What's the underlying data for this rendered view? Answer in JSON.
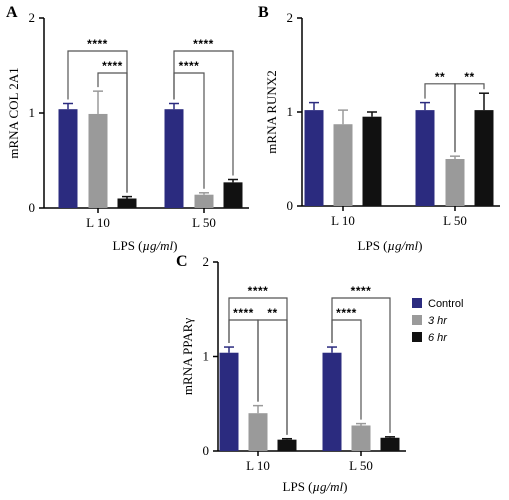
{
  "colors": {
    "control": "#2b2b7f",
    "hr3": "#9a9a9a",
    "hr6": "#111111",
    "axis": "#000000"
  },
  "legend": [
    {
      "label": "Control",
      "italic": false,
      "color_key": "control"
    },
    {
      "label": "3 hr",
      "italic": true,
      "color_key": "hr3"
    },
    {
      "label": "6 hr",
      "italic": true,
      "color_key": "hr6"
    }
  ],
  "chart_data": [
    {
      "panel": "A",
      "type": "bar",
      "ylabel": "mRNA COL 2A1",
      "xlabel_prefix": "LPS (",
      "xlabel_unit": "µg/ml",
      "xlabel_suffix": ")",
      "ylim": [
        0,
        2
      ],
      "yticks": [
        "0",
        "1",
        "2"
      ],
      "categories": [
        "L 10",
        "L 50"
      ],
      "series": [
        {
          "values": [
            1.04,
            1.04
          ],
          "errors": [
            0.06,
            0.06
          ],
          "color_key": "control"
        },
        {
          "values": [
            0.99,
            0.14
          ],
          "errors": [
            0.24,
            0.02
          ],
          "color_key": "hr3"
        },
        {
          "values": [
            0.1,
            0.27
          ],
          "errors": [
            0.02,
            0.03
          ],
          "color_key": "hr6"
        }
      ],
      "significance": [
        {
          "category": 0,
          "from": 0,
          "to": 2,
          "label": "****"
        },
        {
          "category": 0,
          "from": 1,
          "to": 2,
          "label": "****"
        },
        {
          "category": 1,
          "from": 0,
          "to": 2,
          "label": "****"
        },
        {
          "category": 1,
          "from": 0,
          "to": 1,
          "label": "****"
        }
      ]
    },
    {
      "panel": "B",
      "type": "bar",
      "ylabel": "mRNA RUNX2",
      "xlabel_prefix": "LPS (",
      "xlabel_unit": "µg/ml",
      "xlabel_suffix": ")",
      "ylim": [
        0,
        2
      ],
      "yticks": [
        "0",
        "1",
        "2"
      ],
      "categories": [
        "L 10",
        "L 50"
      ],
      "series": [
        {
          "values": [
            1.02,
            1.02
          ],
          "errors": [
            0.08,
            0.08
          ],
          "color_key": "control"
        },
        {
          "values": [
            0.87,
            0.5
          ],
          "errors": [
            0.15,
            0.03
          ],
          "color_key": "hr3"
        },
        {
          "values": [
            0.95,
            1.02
          ],
          "errors": [
            0.05,
            0.18
          ],
          "color_key": "hr6"
        }
      ],
      "significance": [
        {
          "category": 1,
          "from": 0,
          "to": 1,
          "label": "**"
        },
        {
          "category": 1,
          "from": 1,
          "to": 2,
          "label": "**"
        }
      ]
    },
    {
      "panel": "C",
      "type": "bar",
      "ylabel": "mRNA PPARγ",
      "xlabel_prefix": "LPS (",
      "xlabel_unit": "µg/ml",
      "xlabel_suffix": ")",
      "ylim": [
        0,
        2
      ],
      "yticks": [
        "0",
        "1",
        "2"
      ],
      "categories": [
        "L 10",
        "L 50"
      ],
      "series": [
        {
          "values": [
            1.04,
            1.04
          ],
          "errors": [
            0.06,
            0.06
          ],
          "color_key": "control"
        },
        {
          "values": [
            0.4,
            0.27
          ],
          "errors": [
            0.08,
            0.02
          ],
          "color_key": "hr3"
        },
        {
          "values": [
            0.12,
            0.14
          ],
          "errors": [
            0.01,
            0.01
          ],
          "color_key": "hr6"
        }
      ],
      "significance": [
        {
          "category": 0,
          "from": 0,
          "to": 2,
          "label": "****"
        },
        {
          "category": 0,
          "from": 0,
          "to": 1,
          "label": "****"
        },
        {
          "category": 0,
          "from": 1,
          "to": 2,
          "label": "**"
        },
        {
          "category": 1,
          "from": 0,
          "to": 2,
          "label": "****"
        },
        {
          "category": 1,
          "from": 0,
          "to": 1,
          "label": "****"
        }
      ]
    }
  ]
}
